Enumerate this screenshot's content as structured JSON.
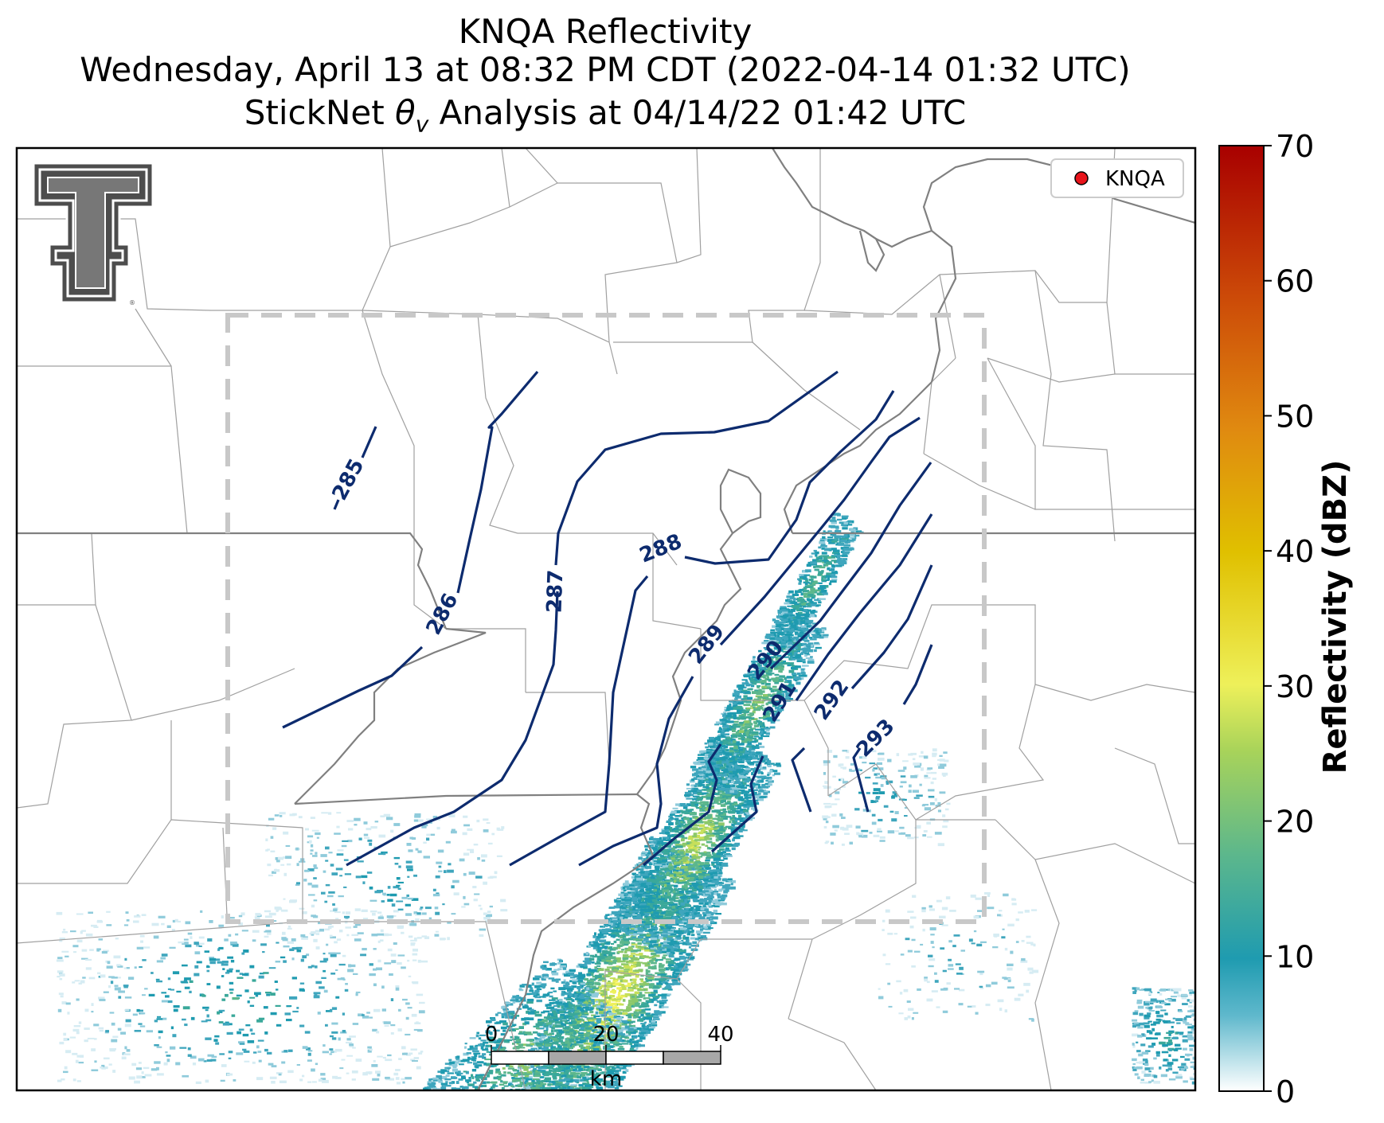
{
  "title": {
    "line1": "KNQA Reflectivity",
    "line2": "Wednesday, April 13 at 08:32 PM CDT (2022-04-14 01:32 UTC)",
    "line3_prefix": "StickNet ",
    "line3_symbol": "θ",
    "line3_sub": "v",
    "line3_suffix": " Analysis at 04/14/22 01:42 UTC"
  },
  "legend": {
    "label": "KNQA",
    "marker_color": "#e8141b"
  },
  "colorbar": {
    "label": "Reflectivity (dBZ)",
    "min": 0,
    "max": 70,
    "ticks": [
      "0",
      "10",
      "20",
      "30",
      "40",
      "50",
      "60",
      "70"
    ],
    "colors": [
      "#ffffff",
      "#1f9bb0",
      "#5cb78c",
      "#a8d35a",
      "#eef05a",
      "#e0c000",
      "#e08a10",
      "#cc4a08",
      "#a80000"
    ]
  },
  "scale_bar": {
    "ticks": [
      "0",
      "20",
      "40"
    ],
    "unit": "km"
  },
  "contours": [
    {
      "value": "285"
    },
    {
      "value": "286"
    },
    {
      "value": "287"
    },
    {
      "value": "288"
    },
    {
      "value": "289"
    },
    {
      "value": "290"
    },
    {
      "value": "291"
    },
    {
      "value": "292"
    },
    {
      "value": "293"
    }
  ],
  "colors": {
    "contour": "#0d2b6e",
    "border": "#808080",
    "county": "#a0a0a0",
    "analysis_box": "#c8c8c8"
  },
  "logo": {
    "name": "texas-tech-double-t-logo"
  }
}
